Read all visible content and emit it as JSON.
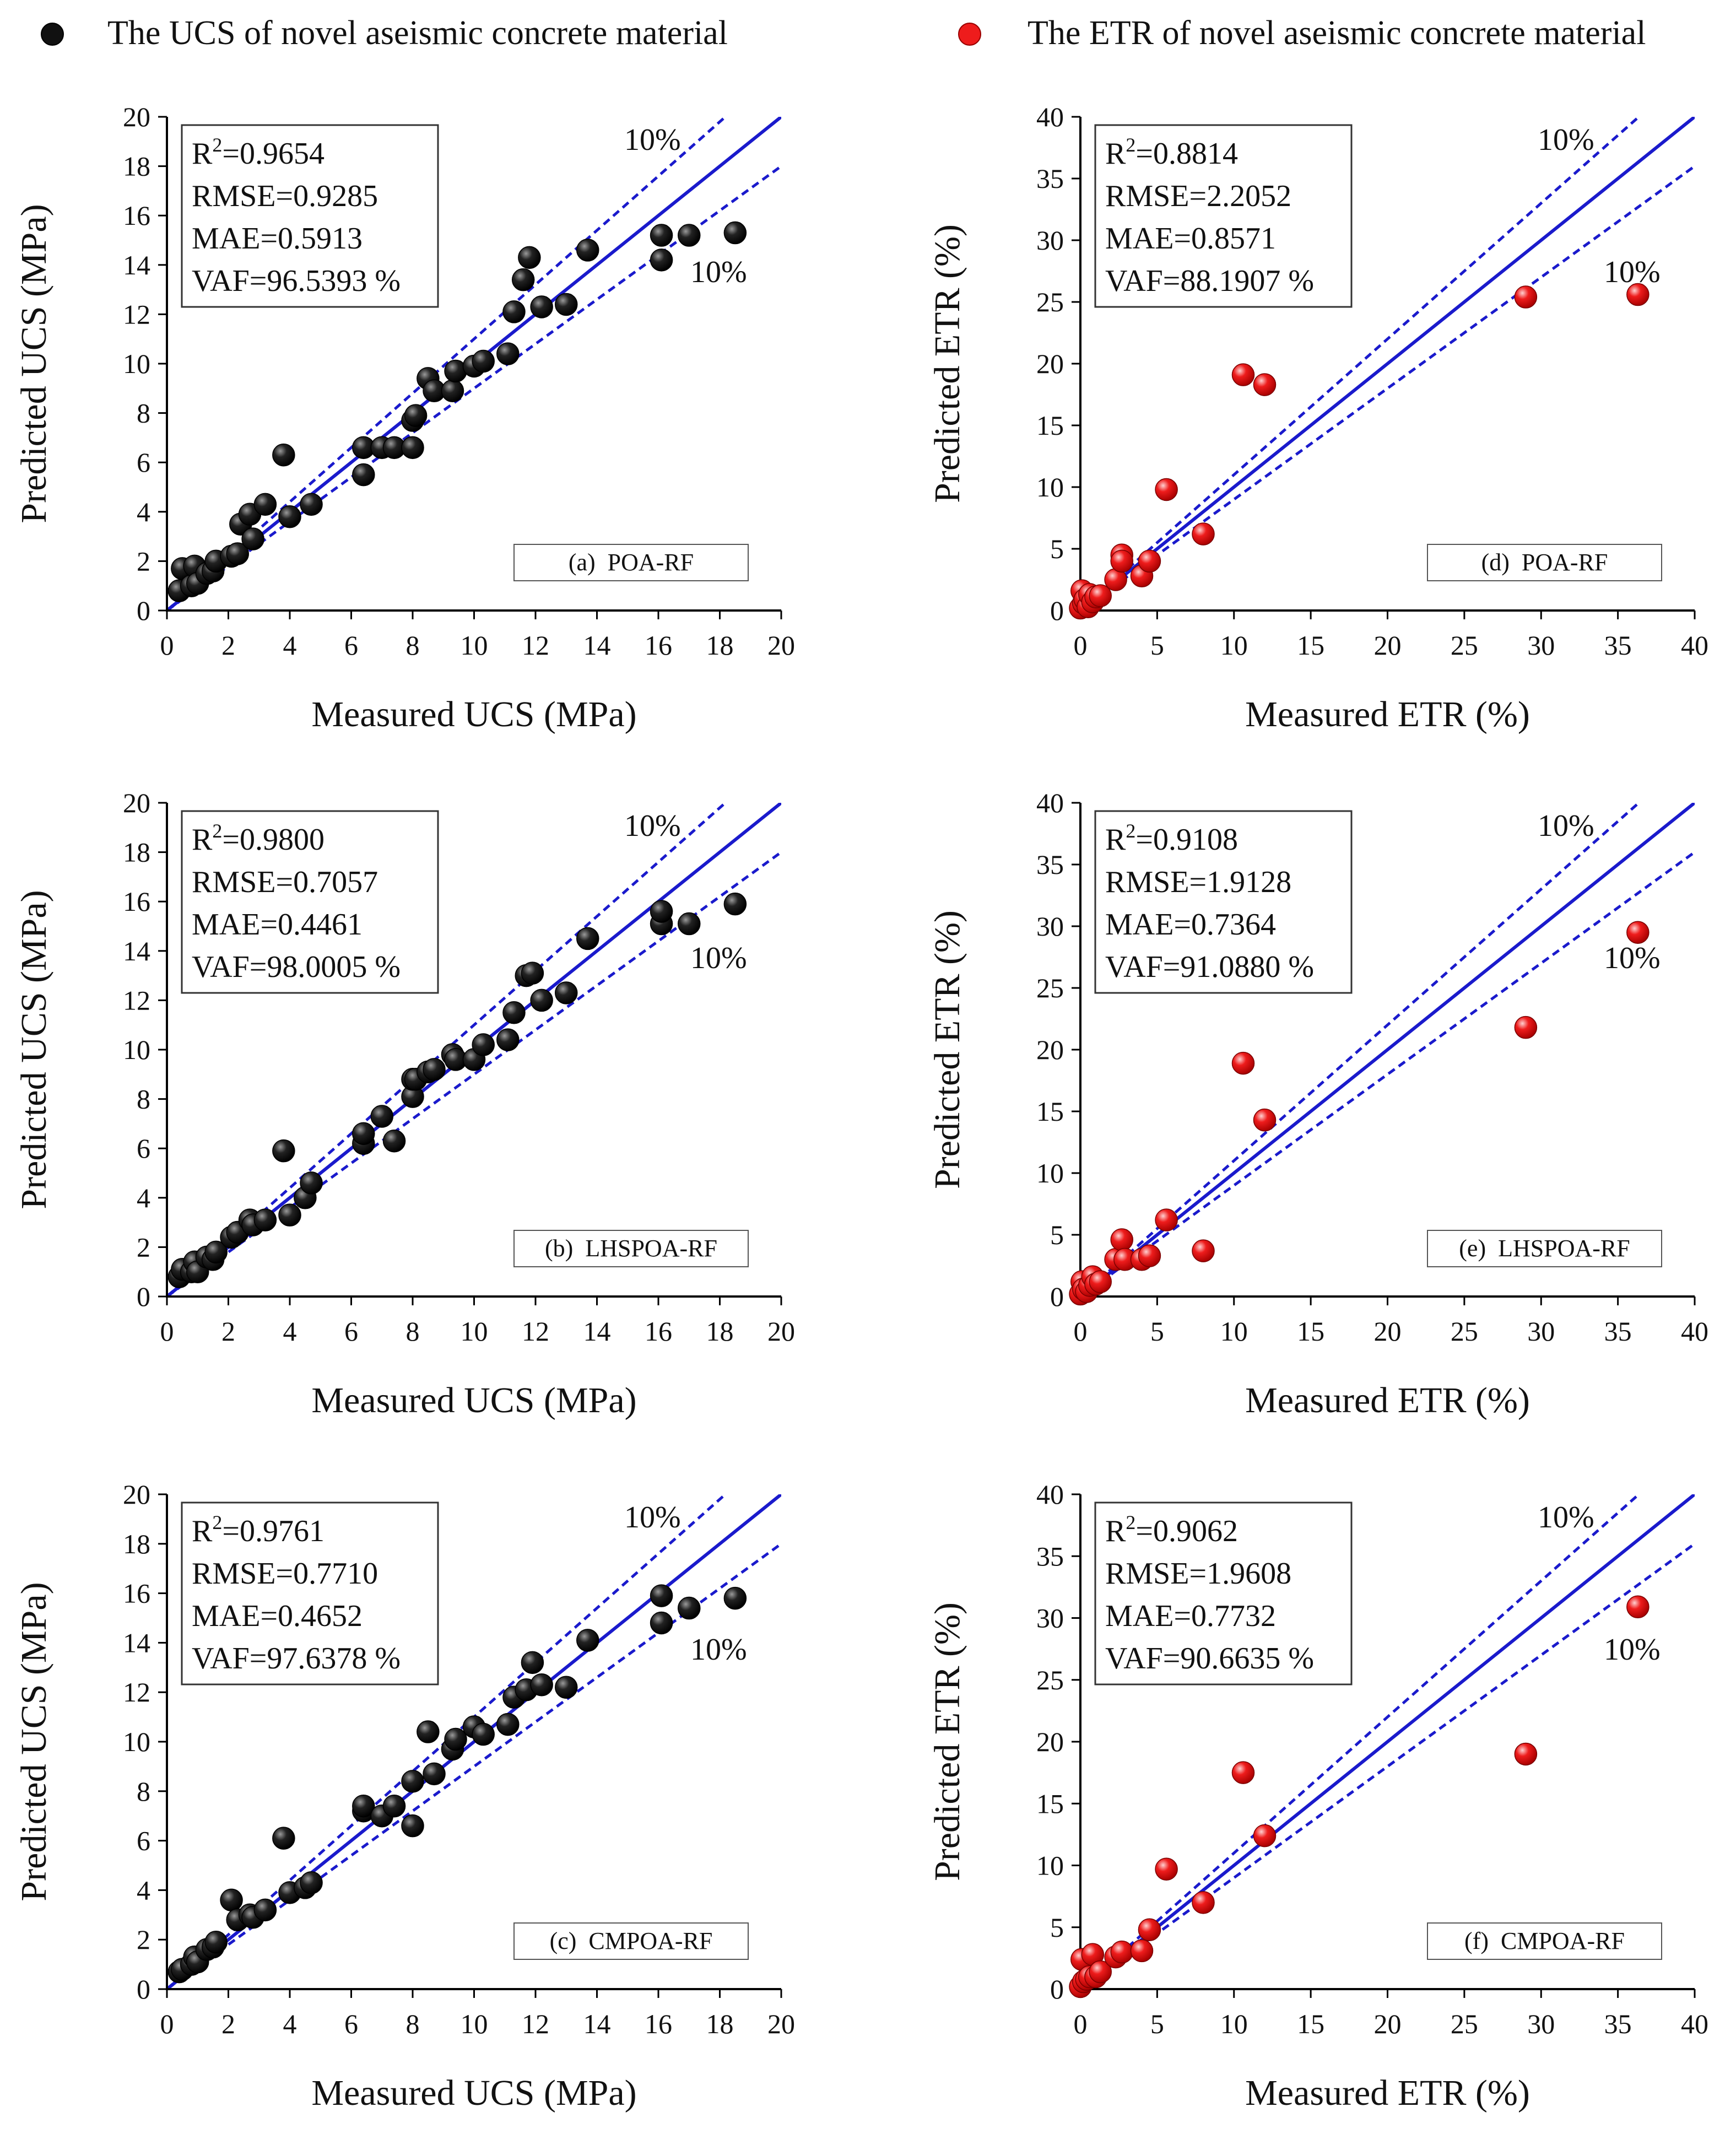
{
  "legend": {
    "ucs_label": "The UCS of novel aseismic concrete material",
    "etr_label": "The ETR of novel aseismic concrete material",
    "ucs_color": "#111111",
    "etr_color": "#ee1c1c"
  },
  "colors": {
    "line": "#1a1acc",
    "band_text": "#1a1acc"
  },
  "chart_data": [
    {
      "id": "a",
      "type": "scatter",
      "variable": "UCS",
      "panel_label": "(a)  POA-RF",
      "xlabel": "Measured UCS (MPa)",
      "ylabel": "Predicted UCS (MPa)",
      "xlim": [
        0,
        20
      ],
      "ylim": [
        0,
        20
      ],
      "xticks": [
        "0",
        "2",
        "4",
        "6",
        "8",
        "10",
        "12",
        "14",
        "16",
        "18",
        "20"
      ],
      "yticks": [
        "0",
        "2",
        "4",
        "6",
        "8",
        "10",
        "12",
        "14",
        "16",
        "18",
        "20"
      ],
      "band_label_upper": "10%",
      "band_label_lower": "10%",
      "stats": {
        "r2_label": "R",
        "r2_sup": "2",
        "r2_value": "=0.9654",
        "rmse": "RMSE=0.9285",
        "mae": "MAE=0.5913",
        "vaf": "VAF=96.5393 %"
      },
      "points": [
        [
          0.4,
          0.8
        ],
        [
          0.5,
          1.7
        ],
        [
          0.8,
          1.0
        ],
        [
          0.9,
          1.8
        ],
        [
          1.0,
          1.1
        ],
        [
          1.3,
          1.5
        ],
        [
          1.5,
          1.6
        ],
        [
          1.6,
          2.0
        ],
        [
          2.1,
          2.2
        ],
        [
          2.3,
          2.3
        ],
        [
          2.4,
          3.5
        ],
        [
          2.7,
          3.9
        ],
        [
          2.8,
          2.9
        ],
        [
          3.2,
          4.3
        ],
        [
          3.8,
          6.3
        ],
        [
          4.0,
          3.8
        ],
        [
          4.7,
          4.3
        ],
        [
          6.4,
          5.5
        ],
        [
          6.4,
          6.6
        ],
        [
          7.0,
          6.6
        ],
        [
          7.4,
          6.6
        ],
        [
          8.0,
          7.7
        ],
        [
          8.0,
          6.6
        ],
        [
          8.1,
          7.9
        ],
        [
          8.5,
          9.4
        ],
        [
          8.7,
          8.9
        ],
        [
          9.3,
          8.9
        ],
        [
          9.4,
          9.7
        ],
        [
          10.0,
          9.9
        ],
        [
          10.3,
          10.1
        ],
        [
          11.1,
          10.4
        ],
        [
          11.3,
          12.1
        ],
        [
          11.6,
          13.4
        ],
        [
          11.8,
          14.3
        ],
        [
          12.2,
          12.3
        ],
        [
          13.0,
          12.4
        ],
        [
          13.7,
          14.6
        ],
        [
          16.1,
          14.2
        ],
        [
          16.1,
          15.2
        ],
        [
          17.0,
          15.2
        ],
        [
          18.5,
          15.3
        ]
      ]
    },
    {
      "id": "b",
      "type": "scatter",
      "variable": "UCS",
      "panel_label": "(b)  LHSPOA-RF",
      "xlabel": "Measured UCS (MPa)",
      "ylabel": "Predicted UCS (MPa)",
      "xlim": [
        0,
        20
      ],
      "ylim": [
        0,
        20
      ],
      "xticks": [
        "0",
        "2",
        "4",
        "6",
        "8",
        "10",
        "12",
        "14",
        "16",
        "18",
        "20"
      ],
      "yticks": [
        "0",
        "2",
        "4",
        "6",
        "8",
        "10",
        "12",
        "14",
        "16",
        "18",
        "20"
      ],
      "band_label_upper": "10%",
      "band_label_lower": "10%",
      "stats": {
        "r2_label": "R",
        "r2_sup": "2",
        "r2_value": "=0.9800",
        "rmse": "RMSE=0.7057",
        "mae": "MAE=0.4461",
        "vaf": "VAF=98.0005 %"
      },
      "points": [
        [
          0.4,
          0.8
        ],
        [
          0.5,
          1.1
        ],
        [
          0.8,
          1.0
        ],
        [
          0.9,
          1.4
        ],
        [
          1.0,
          1.0
        ],
        [
          1.3,
          1.6
        ],
        [
          1.5,
          1.5
        ],
        [
          1.6,
          1.8
        ],
        [
          2.1,
          2.4
        ],
        [
          2.3,
          2.6
        ],
        [
          2.7,
          3.1
        ],
        [
          2.8,
          2.9
        ],
        [
          3.2,
          3.1
        ],
        [
          3.8,
          5.9
        ],
        [
          4.0,
          3.3
        ],
        [
          4.5,
          4.0
        ],
        [
          4.7,
          4.6
        ],
        [
          6.4,
          6.2
        ],
        [
          6.4,
          6.6
        ],
        [
          7.0,
          7.3
        ],
        [
          7.4,
          6.3
        ],
        [
          8.0,
          8.1
        ],
        [
          8.0,
          8.8
        ],
        [
          8.1,
          8.8
        ],
        [
          8.5,
          9.1
        ],
        [
          8.7,
          9.2
        ],
        [
          9.3,
          9.8
        ],
        [
          9.4,
          9.6
        ],
        [
          10.0,
          9.6
        ],
        [
          10.3,
          10.2
        ],
        [
          11.1,
          10.4
        ],
        [
          11.3,
          11.5
        ],
        [
          11.7,
          13.0
        ],
        [
          11.9,
          13.1
        ],
        [
          12.2,
          12.0
        ],
        [
          13.0,
          12.3
        ],
        [
          13.7,
          14.5
        ],
        [
          16.1,
          15.1
        ],
        [
          16.1,
          15.6
        ],
        [
          17.0,
          15.1
        ],
        [
          18.5,
          15.9
        ]
      ]
    },
    {
      "id": "c",
      "type": "scatter",
      "variable": "UCS",
      "panel_label": "(c)  CMPOA-RF",
      "xlabel": "Measured UCS (MPa)",
      "ylabel": "Predicted UCS (MPa)",
      "xlim": [
        0,
        20
      ],
      "ylim": [
        0,
        20
      ],
      "xticks": [
        "0",
        "2",
        "4",
        "6",
        "8",
        "10",
        "12",
        "14",
        "16",
        "18",
        "20"
      ],
      "yticks": [
        "0",
        "2",
        "4",
        "6",
        "8",
        "10",
        "12",
        "14",
        "16",
        "18",
        "20"
      ],
      "band_label_upper": "10%",
      "band_label_lower": "10%",
      "stats": {
        "r2_label": "R",
        "r2_sup": "2",
        "r2_value": "=0.9761",
        "rmse": "RMSE=0.7710",
        "mae": "MAE=0.4652",
        "vaf": "VAF=97.6378 %"
      },
      "points": [
        [
          0.4,
          0.7
        ],
        [
          0.5,
          0.8
        ],
        [
          0.8,
          1.0
        ],
        [
          0.9,
          1.3
        ],
        [
          1.0,
          1.1
        ],
        [
          1.3,
          1.6
        ],
        [
          1.5,
          1.7
        ],
        [
          1.6,
          1.9
        ],
        [
          2.1,
          3.6
        ],
        [
          2.3,
          2.8
        ],
        [
          2.7,
          3.0
        ],
        [
          2.8,
          2.9
        ],
        [
          3.2,
          3.2
        ],
        [
          3.8,
          6.1
        ],
        [
          4.0,
          3.9
        ],
        [
          4.5,
          4.1
        ],
        [
          4.7,
          4.3
        ],
        [
          6.4,
          7.2
        ],
        [
          6.4,
          7.4
        ],
        [
          7.0,
          7.0
        ],
        [
          7.4,
          7.4
        ],
        [
          8.0,
          8.4
        ],
        [
          8.0,
          6.6
        ],
        [
          8.5,
          10.4
        ],
        [
          8.7,
          8.7
        ],
        [
          9.3,
          9.7
        ],
        [
          9.4,
          10.1
        ],
        [
          10.0,
          10.6
        ],
        [
          10.3,
          10.3
        ],
        [
          11.1,
          10.7
        ],
        [
          11.3,
          11.8
        ],
        [
          11.7,
          12.1
        ],
        [
          11.9,
          13.2
        ],
        [
          12.2,
          12.3
        ],
        [
          13.0,
          12.2
        ],
        [
          13.7,
          14.1
        ],
        [
          16.1,
          14.8
        ],
        [
          16.1,
          15.9
        ],
        [
          17.0,
          15.4
        ],
        [
          18.5,
          15.8
        ]
      ]
    },
    {
      "id": "d",
      "type": "scatter",
      "variable": "ETR",
      "panel_label": "(d)  POA-RF",
      "xlabel": "Measured ETR (%)",
      "ylabel": "Predicted ETR (%)",
      "xlim": [
        0,
        40
      ],
      "ylim": [
        0,
        40
      ],
      "xticks": [
        "0",
        "5",
        "10",
        "15",
        "20",
        "25",
        "30",
        "35",
        "40"
      ],
      "yticks": [
        "0",
        "5",
        "10",
        "15",
        "20",
        "25",
        "30",
        "35",
        "40"
      ],
      "band_label_upper": "10%",
      "band_label_lower": "10%",
      "stats": {
        "r2_label": "R",
        "r2_sup": "2",
        "r2_value": "=0.8814",
        "rmse": "RMSE=2.2052",
        "mae": "MAE=0.8571",
        "vaf": "VAF=88.1907 %"
      },
      "points": [
        [
          0.0,
          0.2
        ],
        [
          0.1,
          1.6
        ],
        [
          0.2,
          0.6
        ],
        [
          0.3,
          0.9
        ],
        [
          0.5,
          0.3
        ],
        [
          0.6,
          1.3
        ],
        [
          0.8,
          0.7
        ],
        [
          1.0,
          1.1
        ],
        [
          1.3,
          1.2
        ],
        [
          2.3,
          2.5
        ],
        [
          2.7,
          4.5
        ],
        [
          2.7,
          4.0
        ],
        [
          4.0,
          2.8
        ],
        [
          4.5,
          4.0
        ],
        [
          5.6,
          9.8
        ],
        [
          8.0,
          6.2
        ],
        [
          10.6,
          19.1
        ],
        [
          12.0,
          18.3
        ],
        [
          29.0,
          25.4
        ],
        [
          36.3,
          25.6
        ]
      ]
    },
    {
      "id": "e",
      "type": "scatter",
      "variable": "ETR",
      "panel_label": "(e)  LHSPOA-RF",
      "xlabel": "Measured ETR (%)",
      "ylabel": "Predicted ETR (%)",
      "xlim": [
        0,
        40
      ],
      "ylim": [
        0,
        40
      ],
      "xticks": [
        "0",
        "5",
        "10",
        "15",
        "20",
        "25",
        "30",
        "35",
        "40"
      ],
      "yticks": [
        "0",
        "5",
        "10",
        "15",
        "20",
        "25",
        "30",
        "35",
        "40"
      ],
      "band_label_upper": "10%",
      "band_label_lower": "10%",
      "stats": {
        "r2_label": "R",
        "r2_sup": "2",
        "r2_value": "=0.9108",
        "rmse": "RMSE=1.9128",
        "mae": "MAE=0.7364",
        "vaf": "VAF=91.0880 %"
      },
      "points": [
        [
          0.0,
          0.2
        ],
        [
          0.1,
          1.2
        ],
        [
          0.2,
          0.6
        ],
        [
          0.4,
          0.4
        ],
        [
          0.6,
          0.9
        ],
        [
          0.8,
          1.6
        ],
        [
          1.0,
          1.0
        ],
        [
          1.3,
          1.2
        ],
        [
          2.3,
          3.0
        ],
        [
          2.7,
          4.6
        ],
        [
          2.9,
          3.0
        ],
        [
          4.0,
          3.0
        ],
        [
          4.5,
          3.3
        ],
        [
          5.6,
          6.2
        ],
        [
          8.0,
          3.7
        ],
        [
          10.6,
          18.9
        ],
        [
          12.0,
          14.3
        ],
        [
          29.0,
          21.8
        ],
        [
          36.3,
          29.5
        ]
      ]
    },
    {
      "id": "f",
      "type": "scatter",
      "variable": "ETR",
      "panel_label": "(f)  CMPOA-RF",
      "xlabel": "Measured ETR (%)",
      "ylabel": "Predicted ETR (%)",
      "xlim": [
        0,
        40
      ],
      "ylim": [
        0,
        40
      ],
      "xticks": [
        "0",
        "5",
        "10",
        "15",
        "20",
        "25",
        "30",
        "35",
        "40"
      ],
      "yticks": [
        "0",
        "5",
        "10",
        "15",
        "20",
        "25",
        "30",
        "35",
        "40"
      ],
      "band_label_upper": "10%",
      "band_label_lower": "10%",
      "stats": {
        "r2_label": "R",
        "r2_sup": "2",
        "r2_value": "=0.9062",
        "rmse": "RMSE=1.9608",
        "mae": "MAE=0.7732",
        "vaf": "VAF=90.6635 %"
      },
      "points": [
        [
          0.0,
          0.2
        ],
        [
          0.1,
          2.4
        ],
        [
          0.2,
          0.6
        ],
        [
          0.4,
          0.8
        ],
        [
          0.6,
          1.0
        ],
        [
          0.8,
          2.8
        ],
        [
          1.0,
          1.0
        ],
        [
          1.3,
          1.4
        ],
        [
          2.3,
          2.6
        ],
        [
          2.7,
          3.0
        ],
        [
          4.0,
          3.1
        ],
        [
          4.5,
          4.8
        ],
        [
          5.6,
          9.7
        ],
        [
          8.0,
          7.0
        ],
        [
          10.6,
          17.5
        ],
        [
          12.0,
          12.4
        ],
        [
          29.0,
          19.0
        ],
        [
          36.3,
          30.9
        ]
      ]
    }
  ]
}
